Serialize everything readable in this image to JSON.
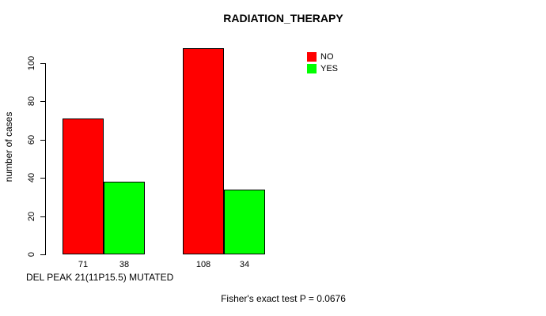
{
  "title": "RADIATION_THERAPY",
  "y_axis_label": "number of cases",
  "x_axis_label": "DEL PEAK 21(11P15.5) MUTATED",
  "footer_note": "Fisher's exact test P = 0.0676",
  "chart_data": {
    "type": "bar",
    "title": "RADIATION_THERAPY",
    "xlabel": "DEL PEAK 21(11P15.5) MUTATED",
    "ylabel": "number of cases",
    "ylim": [
      0,
      110
    ],
    "yticks": [
      0,
      20,
      40,
      60,
      80,
      100
    ],
    "categories": [
      "",
      ""
    ],
    "series": [
      {
        "name": "NO",
        "color": "#ff0000",
        "values": [
          71,
          108
        ]
      },
      {
        "name": "YES",
        "color": "#00ff00",
        "values": [
          38,
          34
        ]
      }
    ],
    "bar_value_labels": [
      [
        "71",
        "38"
      ],
      [
        "108",
        "34"
      ]
    ],
    "annotation": "Fisher's exact test P = 0.0676",
    "legend_position": "top-right",
    "grid": false,
    "bar_border_color": "#000000",
    "background": "#ffffff"
  }
}
